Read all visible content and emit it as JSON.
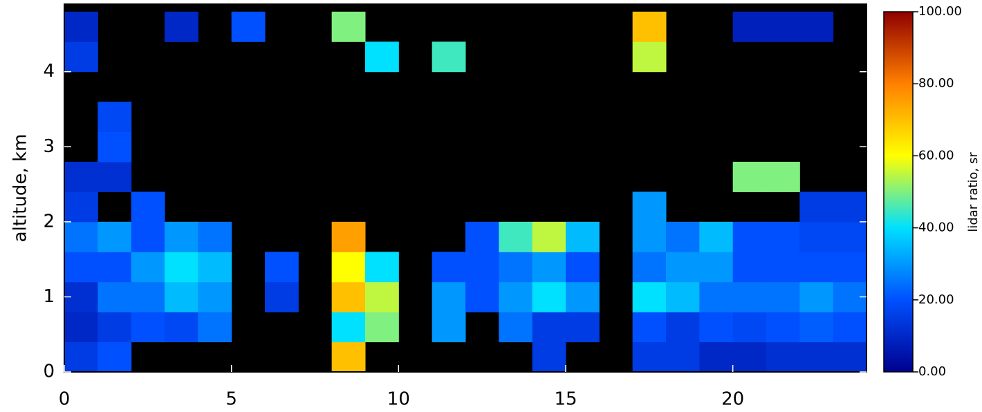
{
  "chart_data": {
    "type": "heatmap",
    "y_label": "altitude, km",
    "x_edges": [
      0,
      1,
      2,
      3,
      4,
      5,
      6,
      7,
      8,
      9,
      10,
      11,
      12,
      13,
      14,
      15,
      16,
      17,
      18,
      19,
      20,
      21,
      22,
      23,
      24
    ],
    "y_edges": [
      0,
      0.4,
      0.8,
      1.2,
      1.6,
      2.0,
      2.4,
      2.8,
      3.2,
      3.6,
      4.0,
      4.4,
      4.8
    ],
    "values": [
      [
        15,
        20,
        null,
        null,
        null,
        null,
        null,
        null,
        70,
        null,
        null,
        null,
        null,
        null,
        15,
        null,
        null,
        15,
        15,
        10,
        10,
        12,
        12,
        12
      ],
      [
        10,
        15,
        20,
        18,
        25,
        null,
        null,
        null,
        40,
        50,
        null,
        30,
        null,
        25,
        15,
        15,
        null,
        20,
        15,
        20,
        18,
        20,
        22,
        20
      ],
      [
        12,
        25,
        25,
        35,
        30,
        null,
        15,
        null,
        70,
        55,
        null,
        30,
        20,
        30,
        40,
        30,
        null,
        40,
        35,
        25,
        25,
        25,
        30,
        25
      ],
      [
        20,
        20,
        30,
        40,
        35,
        null,
        20,
        null,
        60,
        40,
        null,
        20,
        20,
        25,
        30,
        20,
        null,
        25,
        30,
        30,
        20,
        20,
        20,
        20
      ],
      [
        25,
        30,
        20,
        30,
        25,
        null,
        null,
        null,
        75,
        null,
        null,
        null,
        20,
        45,
        55,
        35,
        null,
        30,
        25,
        35,
        20,
        20,
        18,
        18
      ],
      [
        15,
        null,
        20,
        null,
        null,
        null,
        null,
        null,
        null,
        null,
        null,
        null,
        null,
        null,
        null,
        null,
        null,
        30,
        null,
        null,
        null,
        null,
        15,
        15
      ],
      [
        12,
        12,
        null,
        null,
        null,
        null,
        null,
        null,
        null,
        null,
        null,
        null,
        null,
        null,
        null,
        null,
        null,
        null,
        null,
        null,
        50,
        50,
        null,
        null
      ],
      [
        null,
        20,
        null,
        null,
        null,
        null,
        null,
        null,
        null,
        null,
        null,
        null,
        null,
        null,
        null,
        null,
        null,
        null,
        null,
        null,
        null,
        null,
        null,
        null
      ],
      [
        null,
        18,
        null,
        null,
        null,
        null,
        null,
        null,
        null,
        null,
        null,
        null,
        null,
        null,
        null,
        null,
        null,
        null,
        null,
        null,
        null,
        null,
        null,
        null
      ],
      [
        null,
        null,
        null,
        null,
        null,
        null,
        null,
        null,
        null,
        null,
        null,
        null,
        null,
        null,
        null,
        null,
        null,
        null,
        null,
        null,
        null,
        null,
        null,
        null
      ],
      [
        15,
        null,
        null,
        null,
        null,
        null,
        null,
        null,
        null,
        40,
        null,
        45,
        null,
        null,
        null,
        null,
        null,
        55,
        null,
        null,
        null,
        null,
        null,
        null
      ],
      [
        10,
        null,
        null,
        10,
        null,
        20,
        null,
        null,
        50,
        null,
        null,
        null,
        null,
        null,
        null,
        null,
        null,
        70,
        null,
        null,
        8,
        8,
        8,
        null
      ]
    ],
    "xlim": [
      0,
      24
    ],
    "xticks": [
      0,
      5,
      10,
      15,
      20
    ],
    "ylim": [
      0,
      4.9
    ],
    "yticks": [
      0,
      1,
      2,
      3,
      4
    ],
    "background": "#000000",
    "colormap": [
      "#00008f",
      "#0050ff",
      "#00e0ff",
      "#ffff00",
      "#ff8000",
      "#8f0000"
    ],
    "colorbar": {
      "label": "lidar ratio, sr",
      "lim": [
        0,
        100
      ],
      "ticks": [
        {
          "value": 0,
          "label": "0.00"
        },
        {
          "value": 20,
          "label": "20.00"
        },
        {
          "value": 40,
          "label": "40.00"
        },
        {
          "value": 60,
          "label": "60.00"
        },
        {
          "value": 80,
          "label": "80.00"
        },
        {
          "value": 100,
          "label": "100.00"
        }
      ]
    }
  }
}
